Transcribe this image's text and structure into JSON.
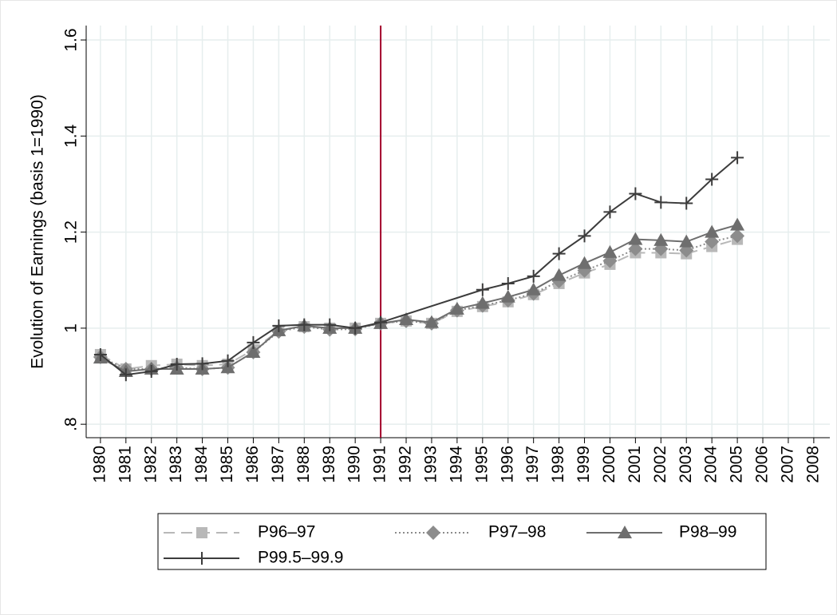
{
  "chart_data": {
    "type": "line",
    "ytitle": "Evolution of Earnings (basis 1=1990)",
    "x": [
      1980,
      1981,
      1982,
      1983,
      1984,
      1985,
      1986,
      1987,
      1988,
      1989,
      1990,
      1991,
      1992,
      1993,
      1994,
      1995,
      1996,
      1997,
      1998,
      1999,
      2000,
      2001,
      2002,
      2003,
      2004,
      2005
    ],
    "xlim": [
      1979.44,
      2008.63
    ],
    "xticks": [
      1980,
      1981,
      1982,
      1983,
      1984,
      1985,
      1986,
      1987,
      1988,
      1989,
      1990,
      1991,
      1992,
      1993,
      1994,
      1995,
      1996,
      1997,
      1998,
      1999,
      2000,
      2001,
      2002,
      2003,
      2004,
      2005,
      2006,
      2007,
      2008
    ],
    "ylim": [
      0.772,
      1.63
    ],
    "yticks": [
      {
        "value": 0.8,
        "label": ".8"
      },
      1,
      1.2,
      1.4,
      1.6
    ],
    "xline": 1991,
    "xline_color": "#a3002a",
    "grid": true,
    "series": [
      {
        "name": "P96–97",
        "color": "#b8b8b8",
        "dash": "dashed",
        "marker": "square",
        "values": [
          0.945,
          0.915,
          0.922,
          0.925,
          0.922,
          0.925,
          0.955,
          0.995,
          1.003,
          1.0,
          1.0,
          1.01,
          1.015,
          1.01,
          1.035,
          1.045,
          1.055,
          1.07,
          1.093,
          1.115,
          1.133,
          1.157,
          1.157,
          1.155,
          1.17,
          1.185
        ]
      },
      {
        "name": "P97–98",
        "color": "#8c8c8c",
        "dash": "dotted",
        "marker": "diamond",
        "values": [
          0.94,
          0.915,
          0.915,
          0.918,
          0.915,
          0.918,
          0.95,
          0.993,
          1.003,
          0.997,
          0.998,
          1.01,
          1.015,
          1.01,
          1.037,
          1.047,
          1.058,
          1.072,
          1.098,
          1.12,
          1.14,
          1.165,
          1.165,
          1.162,
          1.18,
          1.192
        ]
      },
      {
        "name": "P98–99",
        "color": "#6e6e6e",
        "dash": "solid",
        "marker": "triangle",
        "values": [
          0.938,
          0.91,
          0.915,
          0.915,
          0.915,
          0.918,
          0.95,
          0.995,
          1.005,
          1.0,
          1.0,
          1.01,
          1.018,
          1.012,
          1.04,
          1.052,
          1.065,
          1.08,
          1.11,
          1.135,
          1.158,
          1.185,
          1.183,
          1.18,
          1.2,
          1.215
        ]
      },
      {
        "name": "P99.5–99.9",
        "color": "#3c3c3c",
        "dash": "solid",
        "marker": "plus",
        "x": [
          1980,
          1981,
          1982,
          1983,
          1984,
          1985,
          1986,
          1987,
          1988,
          1989,
          1990,
          1991,
          1995,
          1996,
          1997,
          1998,
          1999,
          2000,
          2001,
          2002,
          2003,
          2004,
          2005
        ],
        "values": [
          0.945,
          0.903,
          0.91,
          0.925,
          0.926,
          0.932,
          0.97,
          1.005,
          1.007,
          1.007,
          1.0,
          1.012,
          1.08,
          1.093,
          1.108,
          1.155,
          1.192,
          1.242,
          1.28,
          1.262,
          1.26,
          1.31,
          1.355
        ]
      }
    ]
  }
}
